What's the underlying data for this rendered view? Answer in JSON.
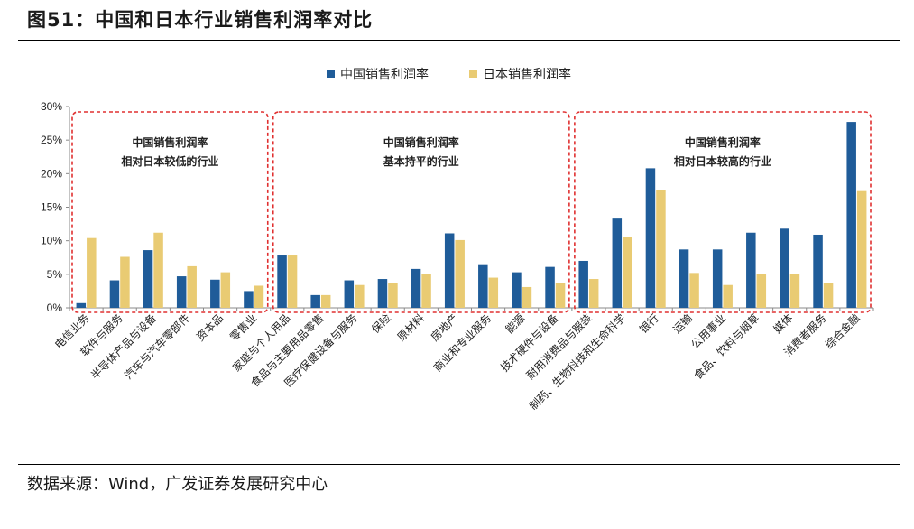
{
  "title": "图51：中国和日本行业销售利润率对比",
  "source": "数据来源：Wind，广发证券发展研究中心",
  "colors": {
    "china": "#1F5C99",
    "japan": "#E9CB73",
    "box": "#E03030"
  },
  "chart_data": {
    "type": "bar",
    "title": "中国和日本行业销售利润率对比",
    "xlabel": "",
    "ylabel": "",
    "ylim": [
      0,
      30
    ],
    "y_ticks": [
      "0%",
      "5%",
      "10%",
      "15%",
      "20%",
      "25%",
      "30%"
    ],
    "legend": [
      "中国销售利润率",
      "日本销售利润率"
    ],
    "categories": [
      "电信业务",
      "软件与服务",
      "半导体产品与设备",
      "汽车与汽车零部件",
      "资本品",
      "零售业",
      "家庭与个人用品",
      "食品与主要用品零售",
      "医疗保健设备与服务",
      "保险",
      "原材料",
      "房地产",
      "商业和专业服务",
      "能源",
      "技术硬件与设备",
      "耐用消费品与服装",
      "制药、生物科技和生命科学",
      "银行",
      "运输",
      "公用事业",
      "食品、饮料与烟草",
      "媒体",
      "消费者服务",
      "综合金融"
    ],
    "series": [
      {
        "name": "中国销售利润率",
        "values": [
          0.7,
          4.1,
          8.6,
          4.7,
          4.2,
          2.5,
          7.8,
          1.9,
          4.1,
          4.3,
          5.8,
          11.1,
          6.5,
          5.3,
          6.1,
          7.0,
          13.3,
          20.8,
          8.7,
          8.7,
          11.2,
          11.8,
          10.9,
          27.7
        ]
      },
      {
        "name": "日本销售利润率",
        "values": [
          10.4,
          7.6,
          11.2,
          6.2,
          5.3,
          3.3,
          7.8,
          1.9,
          3.4,
          3.7,
          5.1,
          10.1,
          4.5,
          3.1,
          3.7,
          4.3,
          10.5,
          17.6,
          5.2,
          3.4,
          5.0,
          5.0,
          3.7,
          17.4
        ]
      }
    ],
    "groups": [
      {
        "label": [
          "中国销售利润率",
          "相对日本较低的行业"
        ],
        "start": 0,
        "end": 5
      },
      {
        "label": [
          "中国销售利润率",
          "基本持平的行业"
        ],
        "start": 6,
        "end": 14
      },
      {
        "label": [
          "中国销售利润率",
          "相对日本较高的行业"
        ],
        "start": 15,
        "end": 23
      }
    ]
  }
}
